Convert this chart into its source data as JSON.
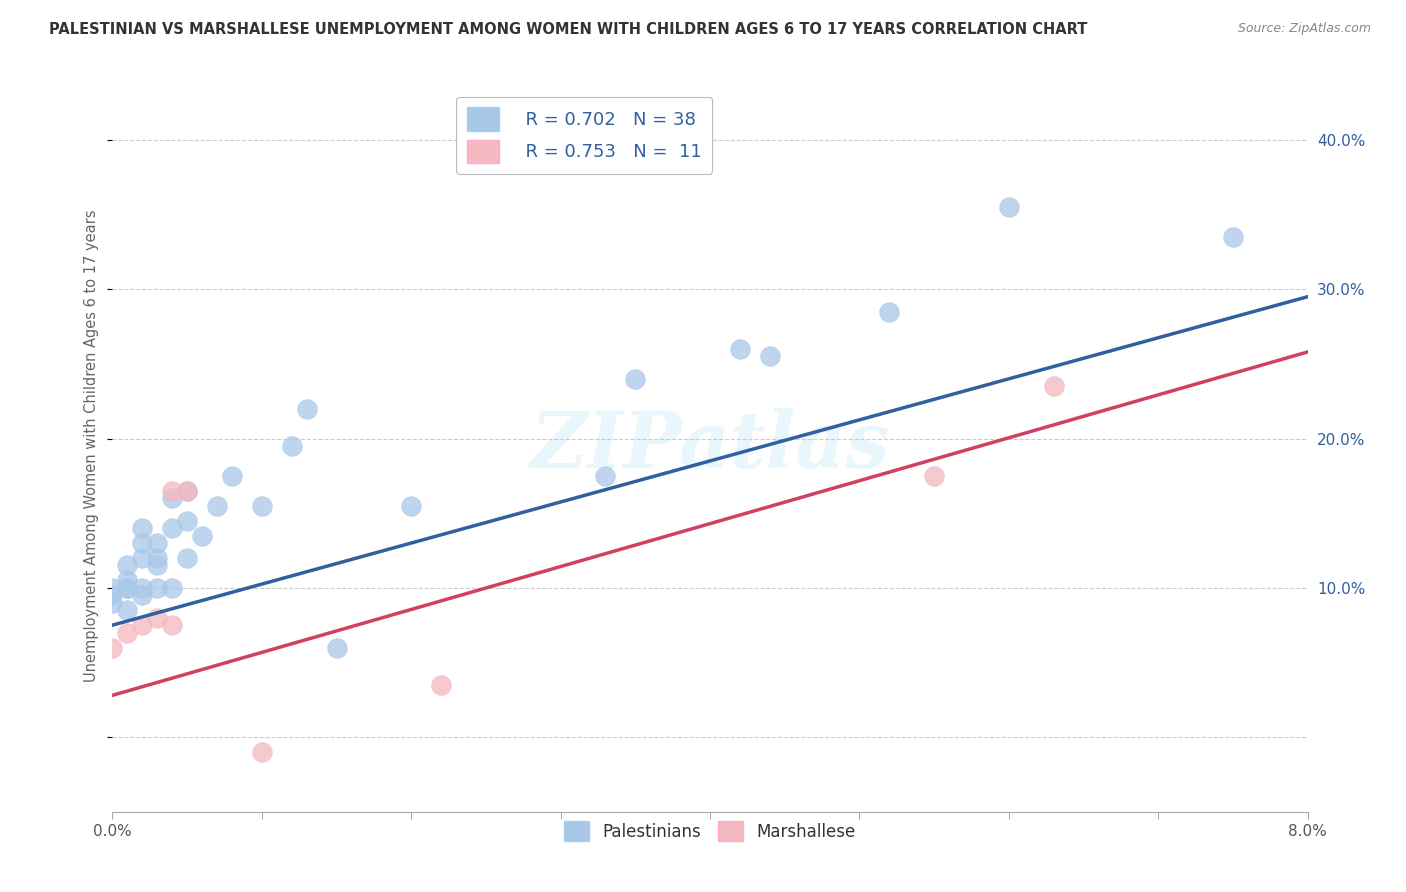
{
  "title": "PALESTINIAN VS MARSHALLESE UNEMPLOYMENT AMONG WOMEN WITH CHILDREN AGES 6 TO 17 YEARS CORRELATION CHART",
  "source": "Source: ZipAtlas.com",
  "ylabel": "Unemployment Among Women with Children Ages 6 to 17 years",
  "xlim": [
    0.0,
    0.08
  ],
  "ylim": [
    -0.05,
    0.44
  ],
  "xticks": [
    0.0,
    0.01,
    0.02,
    0.03,
    0.04,
    0.05,
    0.06,
    0.07,
    0.08
  ],
  "xtick_labels": [
    "0.0%",
    "",
    "",
    "",
    "",
    "",
    "",
    "",
    "8.0%"
  ],
  "yticks": [
    0.0,
    0.1,
    0.2,
    0.3,
    0.4
  ],
  "ytick_labels": [
    "",
    "10.0%",
    "20.0%",
    "30.0%",
    "40.0%"
  ],
  "blue_R": "0.702",
  "blue_N": "38",
  "pink_R": "0.753",
  "pink_N": "11",
  "blue_color": "#a8c8e8",
  "pink_color": "#f4b8c0",
  "blue_line_color": "#3060a0",
  "pink_line_color": "#d04060",
  "background_color": "#ffffff",
  "grid_color": "#cccccc",
  "title_color": "#333333",
  "axis_label_color": "#666666",
  "right_tick_color": "#3060a0",
  "watermark": "ZIPatlas",
  "blue_x": [
    0.0,
    0.0,
    0.0,
    0.001,
    0.001,
    0.001,
    0.001,
    0.001,
    0.002,
    0.002,
    0.002,
    0.002,
    0.002,
    0.003,
    0.003,
    0.003,
    0.003,
    0.004,
    0.004,
    0.004,
    0.005,
    0.005,
    0.005,
    0.006,
    0.007,
    0.008,
    0.01,
    0.012,
    0.013,
    0.015,
    0.02,
    0.033,
    0.035,
    0.042,
    0.044,
    0.052,
    0.06,
    0.075
  ],
  "blue_y": [
    0.09,
    0.095,
    0.1,
    0.085,
    0.1,
    0.1,
    0.105,
    0.115,
    0.095,
    0.1,
    0.12,
    0.13,
    0.14,
    0.1,
    0.115,
    0.12,
    0.13,
    0.1,
    0.14,
    0.16,
    0.12,
    0.145,
    0.165,
    0.135,
    0.155,
    0.175,
    0.155,
    0.195,
    0.22,
    0.06,
    0.155,
    0.175,
    0.24,
    0.26,
    0.255,
    0.285,
    0.355,
    0.335
  ],
  "pink_x": [
    0.0,
    0.001,
    0.002,
    0.003,
    0.004,
    0.004,
    0.005,
    0.01,
    0.022,
    0.055,
    0.063
  ],
  "pink_y": [
    0.06,
    0.07,
    0.075,
    0.08,
    0.075,
    0.165,
    0.165,
    -0.01,
    0.035,
    0.175,
    0.235
  ],
  "blue_line_x0": 0.0,
  "blue_line_y0": 0.075,
  "blue_line_x1": 0.08,
  "blue_line_y1": 0.295,
  "pink_line_x0": 0.0,
  "pink_line_y0": 0.028,
  "pink_line_x1": 0.08,
  "pink_line_y1": 0.258
}
